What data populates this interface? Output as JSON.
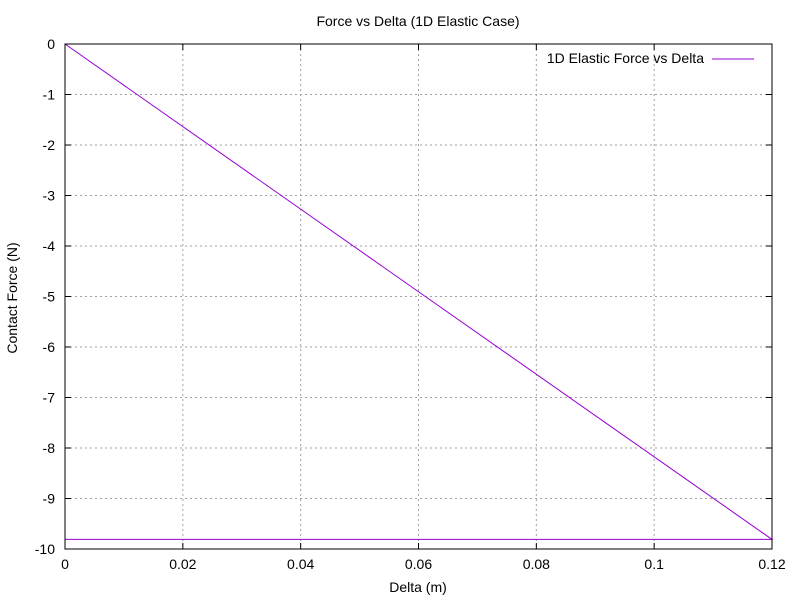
{
  "chart_data": {
    "type": "line",
    "title": "Force vs Delta (1D Elastic Case)",
    "xlabel": "Delta (m)",
    "ylabel": "Contact Force (N)",
    "xlim": [
      0,
      0.12
    ],
    "ylim": [
      -10,
      0
    ],
    "grid": true,
    "legend_position": "top-right",
    "x_ticks": [
      "0",
      "0.02",
      "0.04",
      "0.06",
      "0.08",
      "0.1",
      "0.12"
    ],
    "y_ticks": [
      "0",
      "-1",
      "-2",
      "-3",
      "-4",
      "-5",
      "-6",
      "-7",
      "-8",
      "-9",
      "-10"
    ],
    "series": [
      {
        "name": "1D Elastic Force vs Delta",
        "color": "#9400d3",
        "x": [
          0,
          0.12,
          0
        ],
        "y": [
          0,
          -9.81,
          -9.81
        ]
      }
    ]
  }
}
